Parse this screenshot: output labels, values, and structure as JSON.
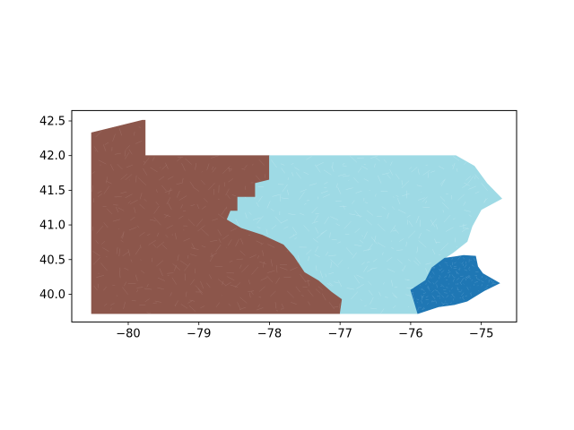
{
  "chart_data": {
    "type": "map",
    "xlim": [
      -80.8,
      -74.5
    ],
    "ylim": [
      39.6,
      42.65
    ],
    "x_ticks": [
      -80,
      -79,
      -78,
      -77,
      -76,
      -75
    ],
    "x_tick_labels": [
      "−80",
      "−79",
      "−78",
      "−77",
      "−76",
      "−75"
    ],
    "y_ticks": [
      40.0,
      40.5,
      41.0,
      41.5,
      42.0,
      42.5
    ],
    "y_tick_labels": [
      "40.0",
      "40.5",
      "41.0",
      "41.5",
      "42.0",
      "42.5"
    ],
    "grid": false,
    "legend": "none",
    "regions": [
      {
        "id": "west",
        "color": "#8c564b",
        "boundary": [
          [
            -80.52,
            42.33
          ],
          [
            -79.8,
            42.51
          ],
          [
            -79.76,
            42.51
          ],
          [
            -79.76,
            42.0
          ],
          [
            -78.0,
            42.0
          ],
          [
            -78.0,
            41.65
          ],
          [
            -78.2,
            41.6
          ],
          [
            -78.2,
            41.4
          ],
          [
            -78.45,
            41.4
          ],
          [
            -78.45,
            41.2
          ],
          [
            -78.55,
            41.2
          ],
          [
            -78.6,
            41.08
          ],
          [
            -78.4,
            40.96
          ],
          [
            -78.1,
            40.86
          ],
          [
            -77.8,
            40.72
          ],
          [
            -77.65,
            40.55
          ],
          [
            -77.5,
            40.32
          ],
          [
            -77.3,
            40.2
          ],
          [
            -77.12,
            40.04
          ],
          [
            -76.97,
            39.93
          ],
          [
            -77.0,
            39.72
          ],
          [
            -80.52,
            39.72
          ]
        ]
      },
      {
        "id": "central-east",
        "color": "#9edae5",
        "boundary": [
          [
            -78.0,
            42.0
          ],
          [
            -75.36,
            42.0
          ],
          [
            -75.1,
            41.85
          ],
          [
            -74.92,
            41.6
          ],
          [
            -74.71,
            41.38
          ],
          [
            -75.0,
            41.22
          ],
          [
            -75.13,
            40.98
          ],
          [
            -75.2,
            40.76
          ],
          [
            -75.4,
            40.6
          ],
          [
            -75.52,
            40.52
          ],
          [
            -75.7,
            40.38
          ],
          [
            -75.79,
            40.2
          ],
          [
            -76.0,
            40.06
          ],
          [
            -75.9,
            39.72
          ],
          [
            -77.0,
            39.72
          ],
          [
            -76.97,
            39.93
          ],
          [
            -77.12,
            40.04
          ],
          [
            -77.3,
            40.2
          ],
          [
            -77.5,
            40.32
          ],
          [
            -77.65,
            40.55
          ],
          [
            -77.8,
            40.72
          ],
          [
            -78.1,
            40.86
          ],
          [
            -78.4,
            40.96
          ],
          [
            -78.6,
            41.08
          ],
          [
            -78.55,
            41.2
          ],
          [
            -78.45,
            41.2
          ],
          [
            -78.45,
            41.4
          ],
          [
            -78.2,
            41.4
          ],
          [
            -78.2,
            41.6
          ],
          [
            -78.0,
            41.65
          ]
        ]
      },
      {
        "id": "southeast",
        "color": "#1f77b4",
        "boundary": [
          [
            -75.52,
            40.52
          ],
          [
            -75.25,
            40.56
          ],
          [
            -75.08,
            40.55
          ],
          [
            -75.05,
            40.4
          ],
          [
            -74.98,
            40.3
          ],
          [
            -74.74,
            40.16
          ],
          [
            -74.96,
            40.05
          ],
          [
            -75.2,
            39.9
          ],
          [
            -75.38,
            39.85
          ],
          [
            -75.6,
            39.82
          ],
          [
            -75.9,
            39.72
          ],
          [
            -76.0,
            40.06
          ],
          [
            -75.79,
            40.2
          ],
          [
            -75.7,
            40.38
          ]
        ]
      }
    ]
  }
}
